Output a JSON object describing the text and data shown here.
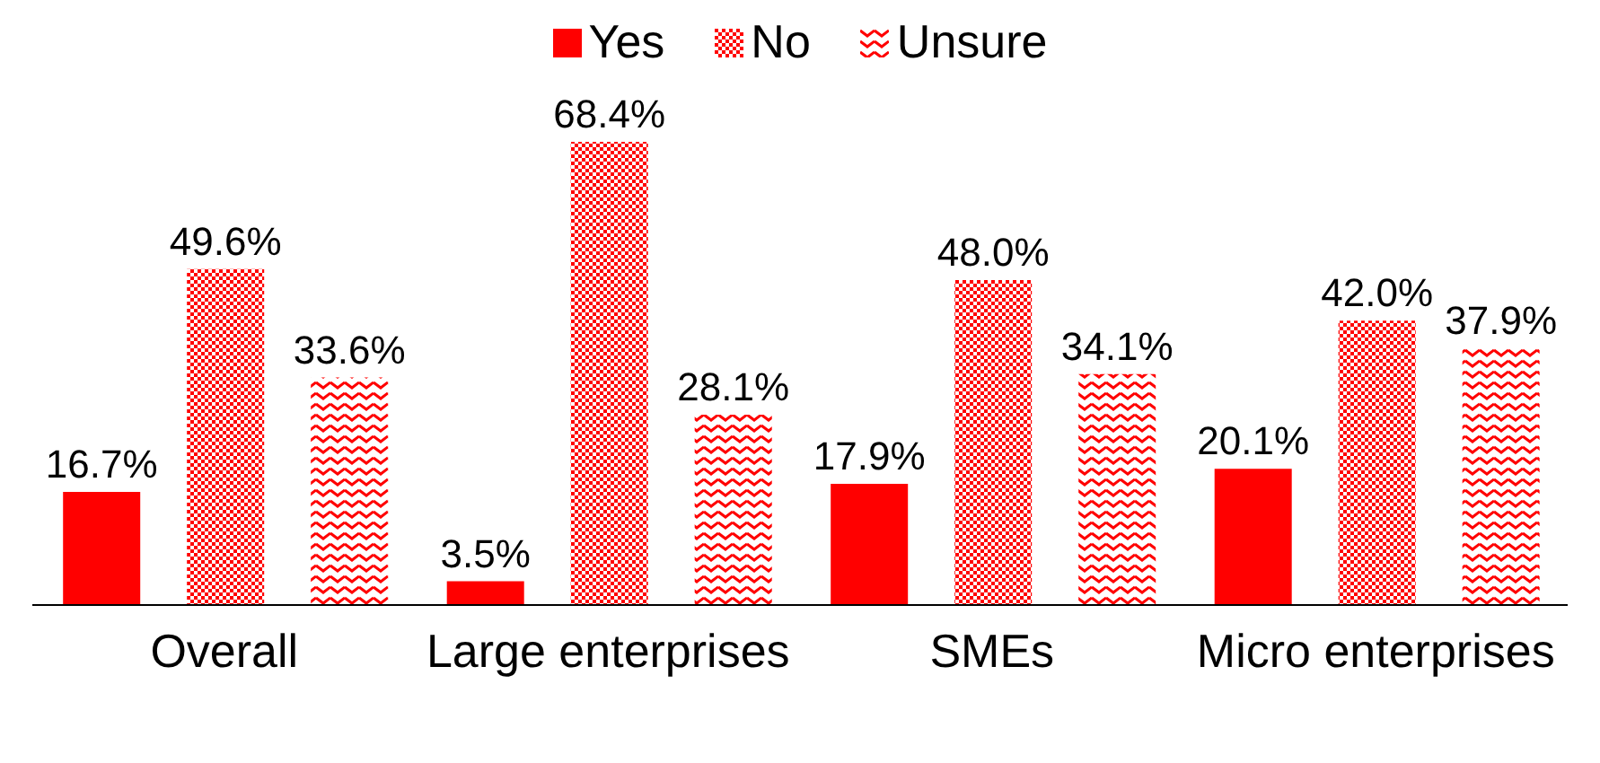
{
  "chart_data": {
    "type": "bar",
    "categories": [
      "Overall",
      "Large enterprises",
      "SMEs",
      "Micro enterprises"
    ],
    "legend": "top",
    "series": [
      {
        "name": "Yes",
        "color": "#ff0000",
        "values": [
          16.7,
          3.5,
          17.9,
          20.1
        ],
        "value_labels": [
          "16.7%",
          "3.5%",
          "17.9%",
          "20.1%"
        ]
      },
      {
        "name": "No",
        "color": "#ff0000",
        "values": [
          49.6,
          68.4,
          48.0,
          42.0
        ],
        "value_labels": [
          "49.6%",
          "68.4%",
          "48.0%",
          "42.0%"
        ]
      },
      {
        "name": "Unsure",
        "color": "#ff0000",
        "values": [
          33.6,
          28.1,
          34.1,
          37.9
        ],
        "value_labels": [
          "33.6%",
          "28.1%",
          "34.1%",
          "37.9%"
        ]
      }
    ]
  }
}
